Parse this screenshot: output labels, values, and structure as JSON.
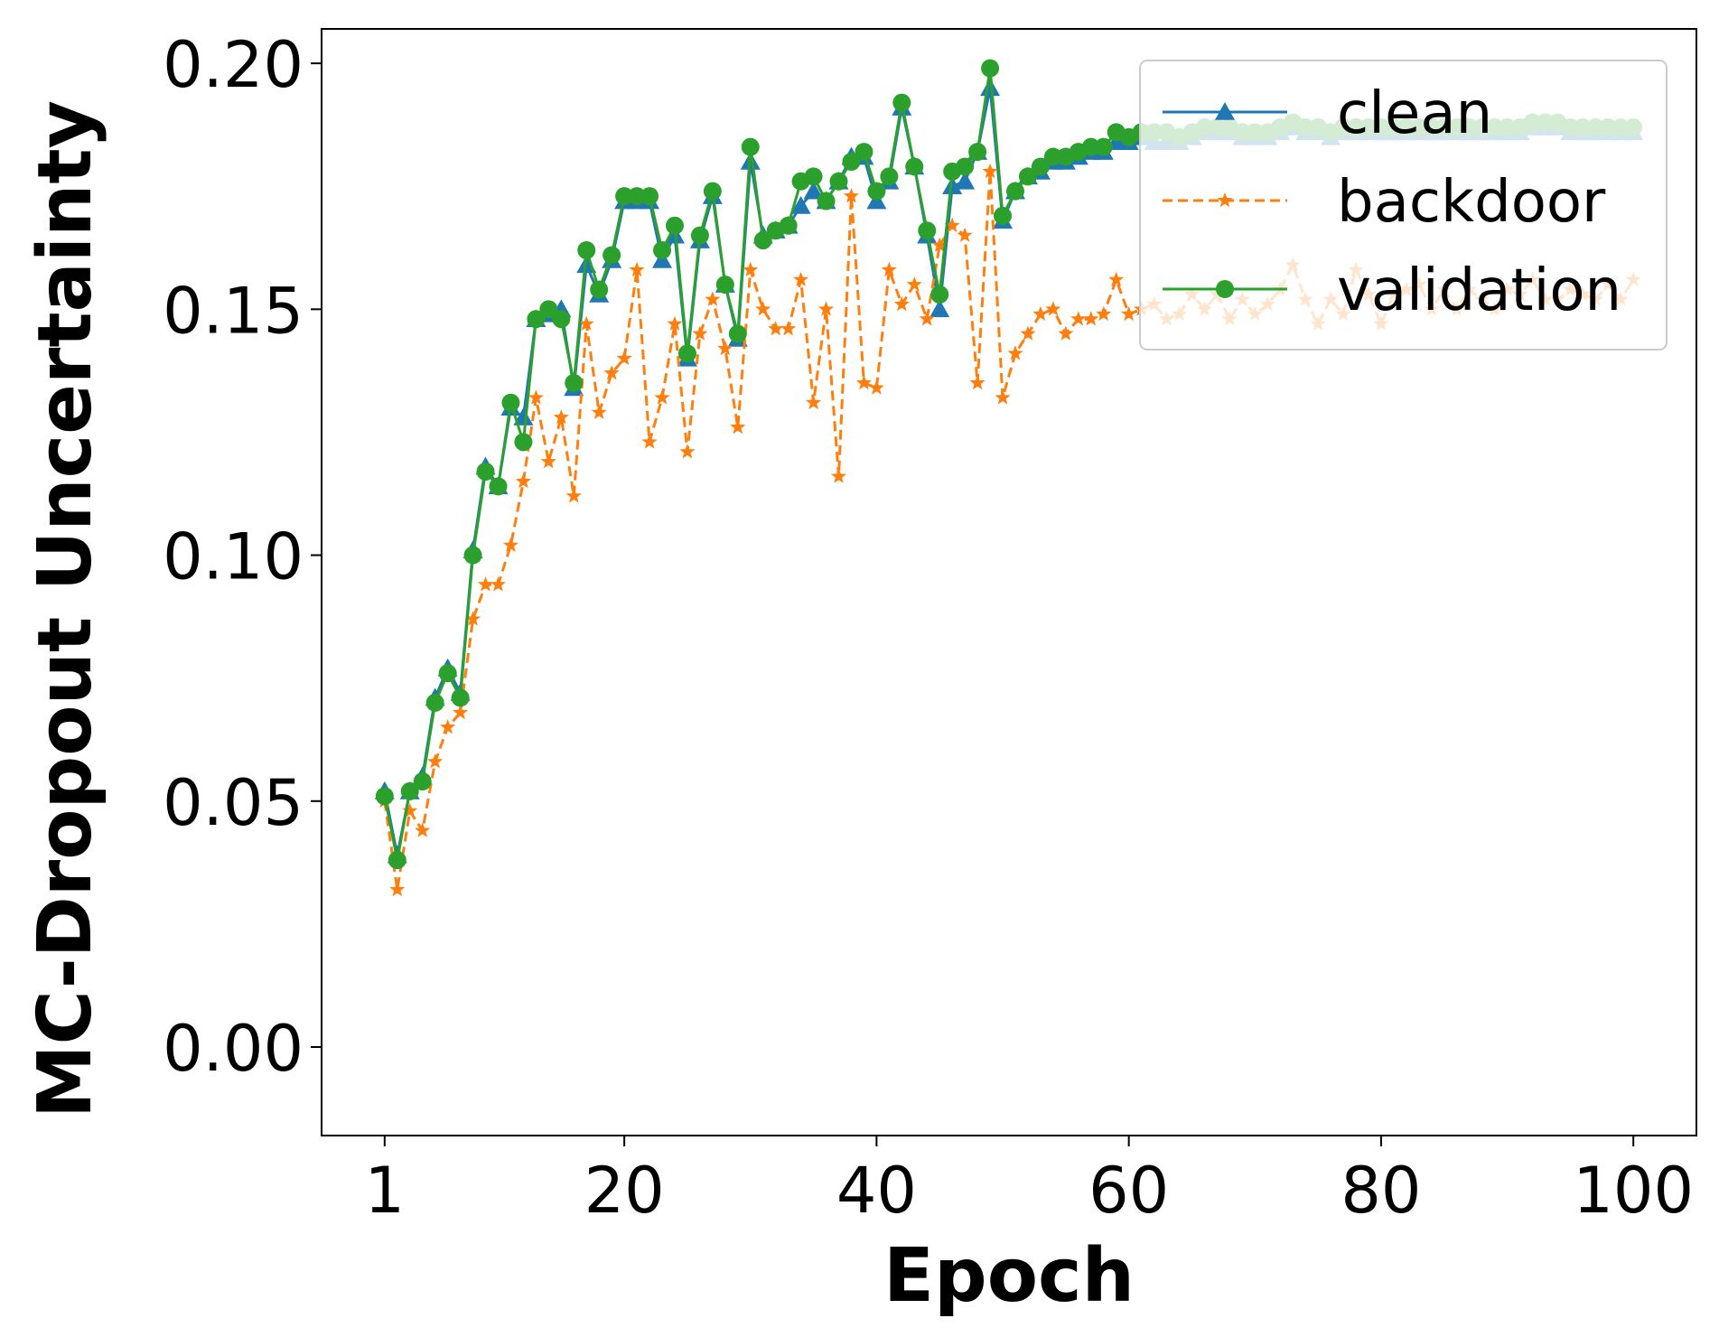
{
  "chart_data": {
    "type": "line",
    "xlabel": "Epoch",
    "ylabel": "MC-Dropout Uncertainty",
    "xlim": [
      -4,
      105
    ],
    "ylim": [
      -0.018,
      0.207
    ],
    "x_ticks": [
      1,
      20,
      40,
      60,
      80,
      100
    ],
    "x_tick_labels": [
      "1",
      "20",
      "40",
      "60",
      "80",
      "100"
    ],
    "y_ticks": [
      0.0,
      0.05,
      0.1,
      0.15,
      0.2
    ],
    "y_tick_labels": [
      "0.00",
      "0.05",
      "0.10",
      "0.15",
      "0.20"
    ],
    "grid": false,
    "legend_position": "top-right",
    "x": [
      1,
      2,
      3,
      4,
      5,
      6,
      7,
      8,
      9,
      10,
      11,
      12,
      13,
      14,
      15,
      16,
      17,
      18,
      19,
      20,
      21,
      22,
      23,
      24,
      25,
      26,
      27,
      28,
      29,
      30,
      31,
      32,
      33,
      34,
      35,
      36,
      37,
      38,
      39,
      40,
      41,
      42,
      43,
      44,
      45,
      46,
      47,
      48,
      49,
      50,
      51,
      52,
      53,
      54,
      55,
      56,
      57,
      58,
      59,
      60,
      61,
      62,
      63,
      64,
      65,
      66,
      67,
      68,
      69,
      70,
      71,
      72,
      73,
      74,
      75,
      76,
      77,
      78,
      79,
      80,
      81,
      82,
      83,
      84,
      85,
      86,
      87,
      88,
      89,
      90,
      91,
      92,
      93,
      94,
      95,
      96,
      97,
      98,
      99,
      100
    ],
    "series": [
      {
        "name": "clean",
        "color": "#1f77b4",
        "dash": "solid",
        "marker": "triangle",
        "values": [
          0.052,
          0.039,
          0.052,
          0.055,
          0.071,
          0.077,
          0.072,
          0.101,
          0.118,
          0.114,
          0.13,
          0.128,
          0.148,
          0.149,
          0.15,
          0.134,
          0.159,
          0.153,
          0.16,
          0.172,
          0.172,
          0.172,
          0.16,
          0.165,
          0.14,
          0.164,
          0.173,
          0.155,
          0.144,
          0.18,
          0.165,
          0.166,
          0.167,
          0.171,
          0.174,
          0.172,
          0.176,
          0.181,
          0.181,
          0.172,
          0.176,
          0.191,
          0.179,
          0.165,
          0.15,
          0.175,
          0.176,
          0.182,
          0.195,
          0.168,
          0.174,
          0.177,
          0.178,
          0.18,
          0.18,
          0.181,
          0.182,
          0.182,
          0.184,
          0.184,
          0.185,
          0.184,
          0.184,
          0.184,
          0.185,
          0.186,
          0.186,
          0.186,
          0.185,
          0.185,
          0.185,
          0.186,
          0.187,
          0.186,
          0.186,
          0.185,
          0.186,
          0.186,
          0.186,
          0.186,
          0.186,
          0.186,
          0.186,
          0.186,
          0.186,
          0.186,
          0.186,
          0.186,
          0.186,
          0.186,
          0.186,
          0.187,
          0.187,
          0.187,
          0.186,
          0.186,
          0.186,
          0.186,
          0.186,
          0.186
        ]
      },
      {
        "name": "backdoor",
        "color": "#ff7f0e",
        "dash": "dashed",
        "marker": "star",
        "values": [
          0.05,
          0.032,
          0.048,
          0.044,
          0.058,
          0.065,
          0.068,
          0.087,
          0.094,
          0.094,
          0.102,
          0.115,
          0.132,
          0.119,
          0.128,
          0.112,
          0.147,
          0.129,
          0.137,
          0.14,
          0.158,
          0.123,
          0.132,
          0.147,
          0.121,
          0.145,
          0.152,
          0.142,
          0.126,
          0.158,
          0.15,
          0.146,
          0.146,
          0.156,
          0.131,
          0.15,
          0.116,
          0.173,
          0.135,
          0.134,
          0.158,
          0.151,
          0.155,
          0.148,
          0.163,
          0.167,
          0.165,
          0.135,
          0.178,
          0.132,
          0.141,
          0.145,
          0.149,
          0.15,
          0.145,
          0.148,
          0.148,
          0.149,
          0.156,
          0.149,
          0.15,
          0.151,
          0.148,
          0.149,
          0.153,
          0.15,
          0.153,
          0.148,
          0.152,
          0.149,
          0.151,
          0.154,
          0.159,
          0.152,
          0.147,
          0.152,
          0.149,
          0.158,
          0.153,
          0.147,
          0.153,
          0.154,
          0.155,
          0.15,
          0.154,
          0.15,
          0.154,
          0.152,
          0.15,
          0.154,
          0.153,
          0.156,
          0.152,
          0.152,
          0.154,
          0.153,
          0.152,
          0.155,
          0.152,
          0.156
        ]
      },
      {
        "name": "validation",
        "color": "#2ca02c",
        "dash": "solid",
        "marker": "circle",
        "values": [
          0.051,
          0.038,
          0.052,
          0.054,
          0.07,
          0.076,
          0.071,
          0.1,
          0.117,
          0.114,
          0.131,
          0.123,
          0.148,
          0.15,
          0.148,
          0.135,
          0.162,
          0.154,
          0.161,
          0.173,
          0.173,
          0.173,
          0.162,
          0.167,
          0.141,
          0.165,
          0.174,
          0.155,
          0.145,
          0.183,
          0.164,
          0.166,
          0.167,
          0.176,
          0.177,
          0.172,
          0.176,
          0.18,
          0.182,
          0.174,
          0.177,
          0.192,
          0.179,
          0.166,
          0.153,
          0.178,
          0.179,
          0.182,
          0.199,
          0.169,
          0.174,
          0.177,
          0.179,
          0.181,
          0.181,
          0.182,
          0.183,
          0.183,
          0.186,
          0.185,
          0.186,
          0.186,
          0.186,
          0.185,
          0.186,
          0.187,
          0.187,
          0.187,
          0.186,
          0.186,
          0.186,
          0.187,
          0.188,
          0.187,
          0.187,
          0.186,
          0.187,
          0.187,
          0.187,
          0.187,
          0.187,
          0.187,
          0.187,
          0.187,
          0.187,
          0.187,
          0.187,
          0.187,
          0.187,
          0.187,
          0.187,
          0.188,
          0.188,
          0.188,
          0.187,
          0.187,
          0.187,
          0.187,
          0.187,
          0.187
        ]
      }
    ]
  }
}
